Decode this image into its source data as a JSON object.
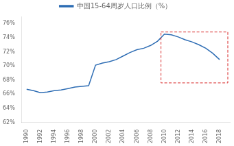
{
  "chart_data": {
    "type": "line",
    "x": [
      1990,
      1991,
      1992,
      1993,
      1994,
      1995,
      1996,
      1997,
      1998,
      1999,
      2000,
      2001,
      2002,
      2003,
      2004,
      2005,
      2006,
      2007,
      2008,
      2009,
      2010,
      2011,
      2012,
      2013,
      2014,
      2015,
      2016,
      2017,
      2018
    ],
    "series": [
      {
        "name": "中国15-64周岁人口比例（%）",
        "color": "#2e6db4",
        "values": [
          66.7,
          66.5,
          66.2,
          66.3,
          66.5,
          66.6,
          66.8,
          67.0,
          67.1,
          67.2,
          70.1,
          70.4,
          70.6,
          70.9,
          71.4,
          71.9,
          72.3,
          72.5,
          72.9,
          73.5,
          74.5,
          74.4,
          74.1,
          73.7,
          73.4,
          73.0,
          72.5,
          71.8,
          70.9
        ]
      }
    ],
    "xlim": [
      1989.3,
      2019.5
    ],
    "xticks": [
      1990,
      1992,
      1994,
      1996,
      1998,
      2000,
      2002,
      2004,
      2006,
      2008,
      2010,
      2012,
      2014,
      2016,
      2018
    ],
    "ylim": [
      62,
      77
    ],
    "yticks": [
      {
        "value": 62,
        "label": "62%"
      },
      {
        "value": 64,
        "label": "64%"
      },
      {
        "value": 66,
        "label": "66%"
      },
      {
        "value": 68,
        "label": "68%"
      },
      {
        "value": 70,
        "label": "70%"
      },
      {
        "value": 72,
        "label": "72%"
      },
      {
        "value": 74,
        "label": "74%"
      },
      {
        "value": 76,
        "label": "76%"
      }
    ],
    "rect": {
      "x": 2009.5,
      "y": 67.6,
      "width": 9.7,
      "height": 7.2,
      "color": "#d92b2b",
      "line_style": "dashed"
    },
    "grid": false,
    "legend": "top"
  }
}
